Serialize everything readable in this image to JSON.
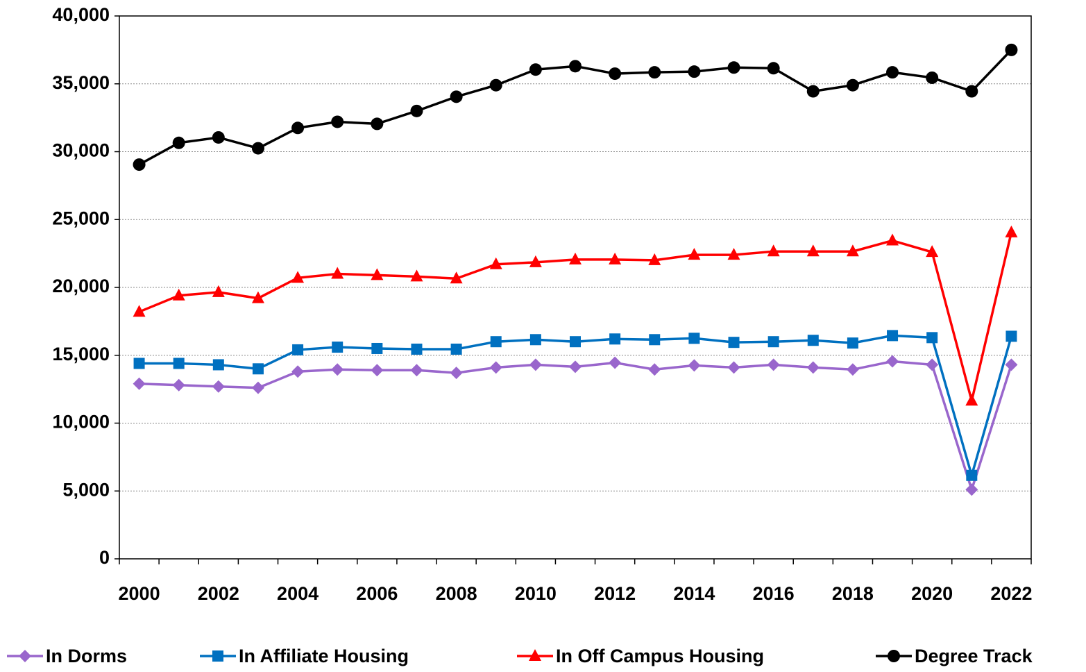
{
  "chart_data": {
    "type": "line",
    "categories": [
      "2000",
      null,
      "2002",
      null,
      "2004",
      null,
      "2006",
      null,
      "2008",
      null,
      "2010",
      null,
      "2012",
      null,
      "2014",
      null,
      "2016",
      null,
      "2018",
      null,
      "2020",
      null,
      "2022"
    ],
    "series": [
      {
        "name": "In Dorms",
        "color": "#9966cc",
        "marker": "diamond",
        "values": [
          12900,
          12800,
          12700,
          12600,
          13800,
          13950,
          13900,
          13900,
          13700,
          14100,
          14300,
          14150,
          14450,
          13950,
          14250,
          14100,
          14300,
          14100,
          13950,
          14550,
          14300,
          5100,
          14300
        ]
      },
      {
        "name": "In Affiliate Housing",
        "color": "#0070c0",
        "marker": "square",
        "values": [
          14400,
          14400,
          14300,
          14000,
          15400,
          15600,
          15500,
          15450,
          15450,
          16000,
          16150,
          16000,
          16200,
          16150,
          16250,
          15950,
          16000,
          16100,
          15900,
          16450,
          16300,
          6150,
          16400
        ]
      },
      {
        "name": "In Off Campus Housing",
        "color": "#ff0000",
        "marker": "triangle",
        "values": [
          18200,
          19400,
          19650,
          19200,
          20700,
          21000,
          20900,
          20800,
          20650,
          21700,
          21850,
          22050,
          22050,
          22000,
          22400,
          22400,
          22650,
          22650,
          22650,
          23450,
          22600,
          11650,
          24050
        ]
      },
      {
        "name": "Degree Track",
        "color": "#000000",
        "marker": "circle",
        "values": [
          29050,
          30650,
          31050,
          30250,
          31750,
          32200,
          32050,
          33000,
          34050,
          34900,
          36050,
          36300,
          35750,
          35850,
          35900,
          36200,
          36150,
          34450,
          34900,
          35850,
          35450,
          34450,
          37500
        ]
      }
    ],
    "ylim": [
      0,
      40000
    ],
    "yticks": [
      0,
      {
        "value": 5000,
        "label": "5,000"
      },
      {
        "value": 10000,
        "label": "10,000"
      },
      {
        "value": 15000,
        "label": "15,000"
      },
      {
        "value": 20000,
        "label": "20,000"
      },
      {
        "value": 25000,
        "label": "25,000"
      },
      {
        "value": 30000,
        "label": "30,000"
      },
      {
        "value": 35000,
        "label": "35,000"
      },
      {
        "value": 40000,
        "label": "40,000"
      }
    ],
    "grid": true,
    "legend": "bottom"
  }
}
